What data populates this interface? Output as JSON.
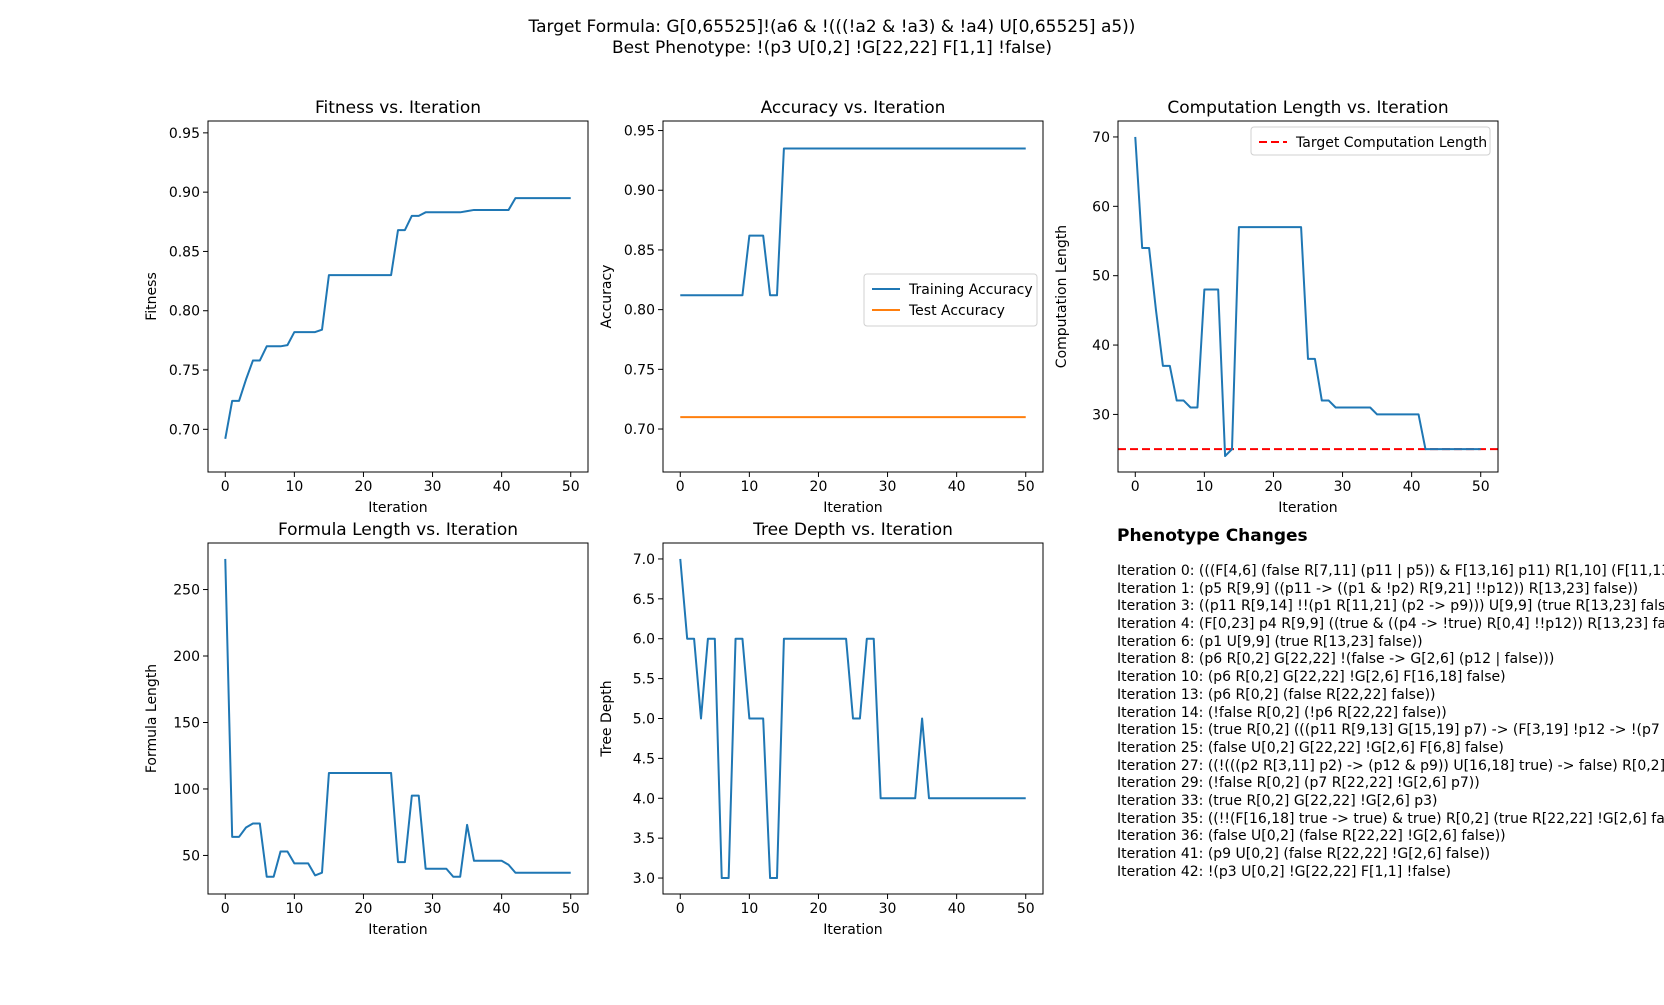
{
  "suptitle": {
    "line1": "Target Formula: G[0,65525]!(a6 & !(((!a2 & !a3) & !a4) U[0,65525] a5))",
    "line2": "Best Phenotype: !(p3 U[0,2] !G[22,22] F[1,1] !false)"
  },
  "colors": {
    "blue": "#1f77b4",
    "orange": "#ff7f0e",
    "red": "#ff0000"
  },
  "chart_data": [
    {
      "id": "fitness",
      "type": "line",
      "title": "Fitness vs. Iteration",
      "xlabel": "Iteration",
      "ylabel": "Fitness",
      "xlim": [
        -2.5,
        52.5
      ],
      "ylim": [
        0.664,
        0.96
      ],
      "xticks": [
        0,
        10,
        20,
        30,
        40,
        50
      ],
      "yticks": [
        0.7,
        0.75,
        0.8,
        0.85,
        0.9,
        0.95
      ],
      "ytick_labels": [
        "0.70",
        "0.75",
        "0.80",
        "0.85",
        "0.90",
        "0.95"
      ],
      "grid": false,
      "series": [
        {
          "color": "#1f77b4",
          "x": [
            0,
            1,
            2,
            3,
            4,
            5,
            6,
            7,
            8,
            9,
            10,
            11,
            12,
            13,
            14,
            15,
            16,
            17,
            18,
            19,
            20,
            21,
            22,
            23,
            24,
            25,
            26,
            27,
            28,
            29,
            30,
            31,
            32,
            33,
            34,
            35,
            36,
            37,
            38,
            39,
            40,
            41,
            42,
            43,
            44,
            45,
            46,
            47,
            48,
            49,
            50
          ],
          "y": [
            0.692,
            0.724,
            0.724,
            0.742,
            0.758,
            0.758,
            0.77,
            0.77,
            0.77,
            0.771,
            0.782,
            0.782,
            0.782,
            0.782,
            0.784,
            0.83,
            0.83,
            0.83,
            0.83,
            0.83,
            0.83,
            0.83,
            0.83,
            0.83,
            0.83,
            0.868,
            0.868,
            0.88,
            0.88,
            0.883,
            0.883,
            0.883,
            0.883,
            0.883,
            0.883,
            0.884,
            0.885,
            0.885,
            0.885,
            0.885,
            0.885,
            0.885,
            0.895,
            0.895,
            0.895,
            0.895,
            0.895,
            0.895,
            0.895,
            0.895,
            0.895
          ]
        }
      ]
    },
    {
      "id": "accuracy",
      "type": "line",
      "title": "Accuracy vs. Iteration",
      "xlabel": "Iteration",
      "ylabel": "Accuracy",
      "xlim": [
        -2.5,
        52.5
      ],
      "ylim": [
        0.664,
        0.958
      ],
      "xticks": [
        0,
        10,
        20,
        30,
        40,
        50
      ],
      "yticks": [
        0.7,
        0.75,
        0.8,
        0.85,
        0.9,
        0.95
      ],
      "ytick_labels": [
        "0.70",
        "0.75",
        "0.80",
        "0.85",
        "0.90",
        "0.95"
      ],
      "grid": false,
      "legend": {
        "placement": "center-right",
        "entries": [
          "Training Accuracy",
          "Test Accuracy"
        ]
      },
      "series": [
        {
          "name": "Training Accuracy",
          "color": "#1f77b4",
          "x": [
            0,
            1,
            2,
            3,
            4,
            5,
            6,
            7,
            8,
            9,
            10,
            11,
            12,
            13,
            14,
            15,
            16,
            17,
            18,
            19,
            20,
            21,
            22,
            23,
            24,
            25,
            26,
            27,
            28,
            29,
            30,
            31,
            32,
            33,
            34,
            35,
            36,
            37,
            38,
            39,
            40,
            41,
            42,
            43,
            44,
            45,
            46,
            47,
            48,
            49,
            50
          ],
          "y": [
            0.812,
            0.812,
            0.812,
            0.812,
            0.812,
            0.812,
            0.812,
            0.812,
            0.812,
            0.812,
            0.862,
            0.862,
            0.862,
            0.812,
            0.812,
            0.935,
            0.935,
            0.935,
            0.935,
            0.935,
            0.935,
            0.935,
            0.935,
            0.935,
            0.935,
            0.935,
            0.935,
            0.935,
            0.935,
            0.935,
            0.935,
            0.935,
            0.935,
            0.935,
            0.935,
            0.935,
            0.935,
            0.935,
            0.935,
            0.935,
            0.935,
            0.935,
            0.935,
            0.935,
            0.935,
            0.935,
            0.935,
            0.935,
            0.935,
            0.935,
            0.935
          ]
        },
        {
          "name": "Test Accuracy",
          "color": "#ff7f0e",
          "x": [
            0,
            50
          ],
          "y": [
            0.71,
            0.71
          ]
        }
      ]
    },
    {
      "id": "complen",
      "type": "line",
      "title": "Computation Length vs. Iteration",
      "xlabel": "Iteration",
      "ylabel": "Computation Length",
      "xlim": [
        -2.5,
        52.5
      ],
      "ylim": [
        21.7,
        72.3
      ],
      "xticks": [
        0,
        10,
        20,
        30,
        40,
        50
      ],
      "yticks": [
        30,
        40,
        50,
        60,
        70
      ],
      "ytick_labels": [
        "30",
        "40",
        "50",
        "60",
        "70"
      ],
      "grid": false,
      "legend": {
        "placement": "top-right",
        "entries": [
          "Target Computation Length"
        ]
      },
      "hline": {
        "name": "Target Computation Length",
        "y": 25,
        "color": "#ff0000",
        "style": "dashed"
      },
      "series": [
        {
          "color": "#1f77b4",
          "x": [
            0,
            1,
            2,
            3,
            4,
            5,
            6,
            7,
            8,
            9,
            10,
            11,
            12,
            13,
            14,
            15,
            16,
            17,
            18,
            19,
            20,
            21,
            22,
            23,
            24,
            25,
            26,
            27,
            28,
            29,
            30,
            31,
            32,
            33,
            34,
            35,
            36,
            37,
            38,
            39,
            40,
            41,
            42,
            43,
            44,
            45,
            46,
            47,
            48,
            49,
            50
          ],
          "y": [
            70,
            54,
            54,
            45,
            37,
            37,
            32,
            32,
            31,
            31,
            48,
            48,
            48,
            24,
            25,
            57,
            57,
            57,
            57,
            57,
            57,
            57,
            57,
            57,
            57,
            38,
            38,
            32,
            32,
            31,
            31,
            31,
            31,
            31,
            31,
            30,
            30,
            30,
            30,
            30,
            30,
            30,
            25,
            25,
            25,
            25,
            25,
            25,
            25,
            25,
            25
          ]
        }
      ]
    },
    {
      "id": "formlen",
      "type": "line",
      "title": "Formula Length vs. Iteration",
      "xlabel": "Iteration",
      "ylabel": "Formula Length",
      "xlim": [
        -2.5,
        52.5
      ],
      "ylim": [
        21,
        285
      ],
      "xticks": [
        0,
        10,
        20,
        30,
        40,
        50
      ],
      "yticks": [
        50,
        100,
        150,
        200,
        250
      ],
      "ytick_labels": [
        "50",
        "100",
        "150",
        "200",
        "250"
      ],
      "grid": false,
      "series": [
        {
          "color": "#1f77b4",
          "x": [
            0,
            1,
            2,
            3,
            4,
            5,
            6,
            7,
            8,
            9,
            10,
            11,
            12,
            13,
            14,
            15,
            16,
            17,
            18,
            19,
            20,
            21,
            22,
            23,
            24,
            25,
            26,
            27,
            28,
            29,
            30,
            31,
            32,
            33,
            34,
            35,
            36,
            37,
            38,
            39,
            40,
            41,
            42,
            43,
            44,
            45,
            46,
            47,
            48,
            49,
            50
          ],
          "y": [
            273,
            64,
            64,
            71,
            74,
            74,
            34,
            34,
            53,
            53,
            44,
            44,
            44,
            35,
            37,
            112,
            112,
            112,
            112,
            112,
            112,
            112,
            112,
            112,
            112,
            45,
            45,
            95,
            95,
            40,
            40,
            40,
            40,
            34,
            34,
            73,
            46,
            46,
            46,
            46,
            46,
            43,
            37,
            37,
            37,
            37,
            37,
            37,
            37,
            37,
            37
          ]
        }
      ]
    },
    {
      "id": "treedepth",
      "type": "line",
      "title": "Tree Depth vs. Iteration",
      "xlabel": "Iteration",
      "ylabel": "Tree Depth",
      "xlim": [
        -2.5,
        52.5
      ],
      "ylim": [
        2.8,
        7.2
      ],
      "xticks": [
        0,
        10,
        20,
        30,
        40,
        50
      ],
      "yticks": [
        3.0,
        3.5,
        4.0,
        4.5,
        5.0,
        5.5,
        6.0,
        6.5,
        7.0
      ],
      "ytick_labels": [
        "3.0",
        "3.5",
        "4.0",
        "4.5",
        "5.0",
        "5.5",
        "6.0",
        "6.5",
        "7.0"
      ],
      "grid": false,
      "series": [
        {
          "color": "#1f77b4",
          "x": [
            0,
            1,
            2,
            3,
            4,
            5,
            6,
            7,
            8,
            9,
            10,
            11,
            12,
            13,
            14,
            15,
            16,
            17,
            18,
            19,
            20,
            21,
            22,
            23,
            24,
            25,
            26,
            27,
            28,
            29,
            30,
            31,
            32,
            33,
            34,
            35,
            36,
            37,
            38,
            39,
            40,
            41,
            42,
            43,
            44,
            45,
            46,
            47,
            48,
            49,
            50
          ],
          "y": [
            7,
            6,
            6,
            5,
            6,
            6,
            3,
            3,
            6,
            6,
            5,
            5,
            5,
            3,
            3,
            6,
            6,
            6,
            6,
            6,
            6,
            6,
            6,
            6,
            6,
            5,
            5,
            6,
            6,
            4,
            4,
            4,
            4,
            4,
            4,
            5,
            4,
            4,
            4,
            4,
            4,
            4,
            4,
            4,
            4,
            4,
            4,
            4,
            4,
            4,
            4
          ]
        }
      ]
    }
  ],
  "phenotype_changes": {
    "title": "Phenotype Changes",
    "lines": [
      "Iteration 0: (((F[4,6] (false R[7,11] (p11 | p5)) & F[13,16] p11) R[1,10] (F[11,13",
      "Iteration 1: (p5 R[9,9] ((p11 -> ((p1 & !p2) R[9,21] !!p12)) R[13,23] false))",
      "Iteration 3: ((p11 R[9,14] !!(p1 R[11,21] (p2 -> p9))) U[9,9] (true R[13,23] false",
      "Iteration 4: (F[0,23] p4 R[9,9] ((true & ((p4 -> !true) R[0,4] !!p12)) R[13,23] fal",
      "Iteration 6: (p1 U[9,9] (true R[13,23] false))",
      "Iteration 8: (p6 R[0,2] G[22,22] !(false -> G[2,6] (p12 | false)))",
      "Iteration 10: (p6 R[0,2] G[22,22] !G[2,6] F[16,18] false)",
      "Iteration 13: (p6 R[0,2] (false R[22,22] false))",
      "Iteration 14: (!false R[0,2] (!p6 R[22,22] false))",
      "Iteration 15: (true R[0,2] (((p11 R[9,13] G[15,19] p7) -> (F[3,19] !p12 -> !(p7 U",
      "Iteration 25: (false U[0,2] G[22,22] !G[2,6] F[6,8] false)",
      "Iteration 27: ((!(((p2 R[3,11] p2) -> (p12 & p9)) U[16,18] true) -> false) R[0,2]",
      "Iteration 29: (!false R[0,2] (p7 R[22,22] !G[2,6] p7))",
      "Iteration 33: (true R[0,2] G[22,22] !G[2,6] p3)",
      "Iteration 35: ((!!(F[16,18] true -> true) & true) R[0,2] (true R[22,22] !G[2,6] fal",
      "Iteration 36: (false U[0,2] (false R[22,22] !G[2,6] false))",
      "Iteration 41: (p9 U[0,2] (false R[22,22] !G[2,6] false))",
      "Iteration 42: !(p3 U[0,2] !G[22,22] F[1,1] !false)"
    ]
  }
}
